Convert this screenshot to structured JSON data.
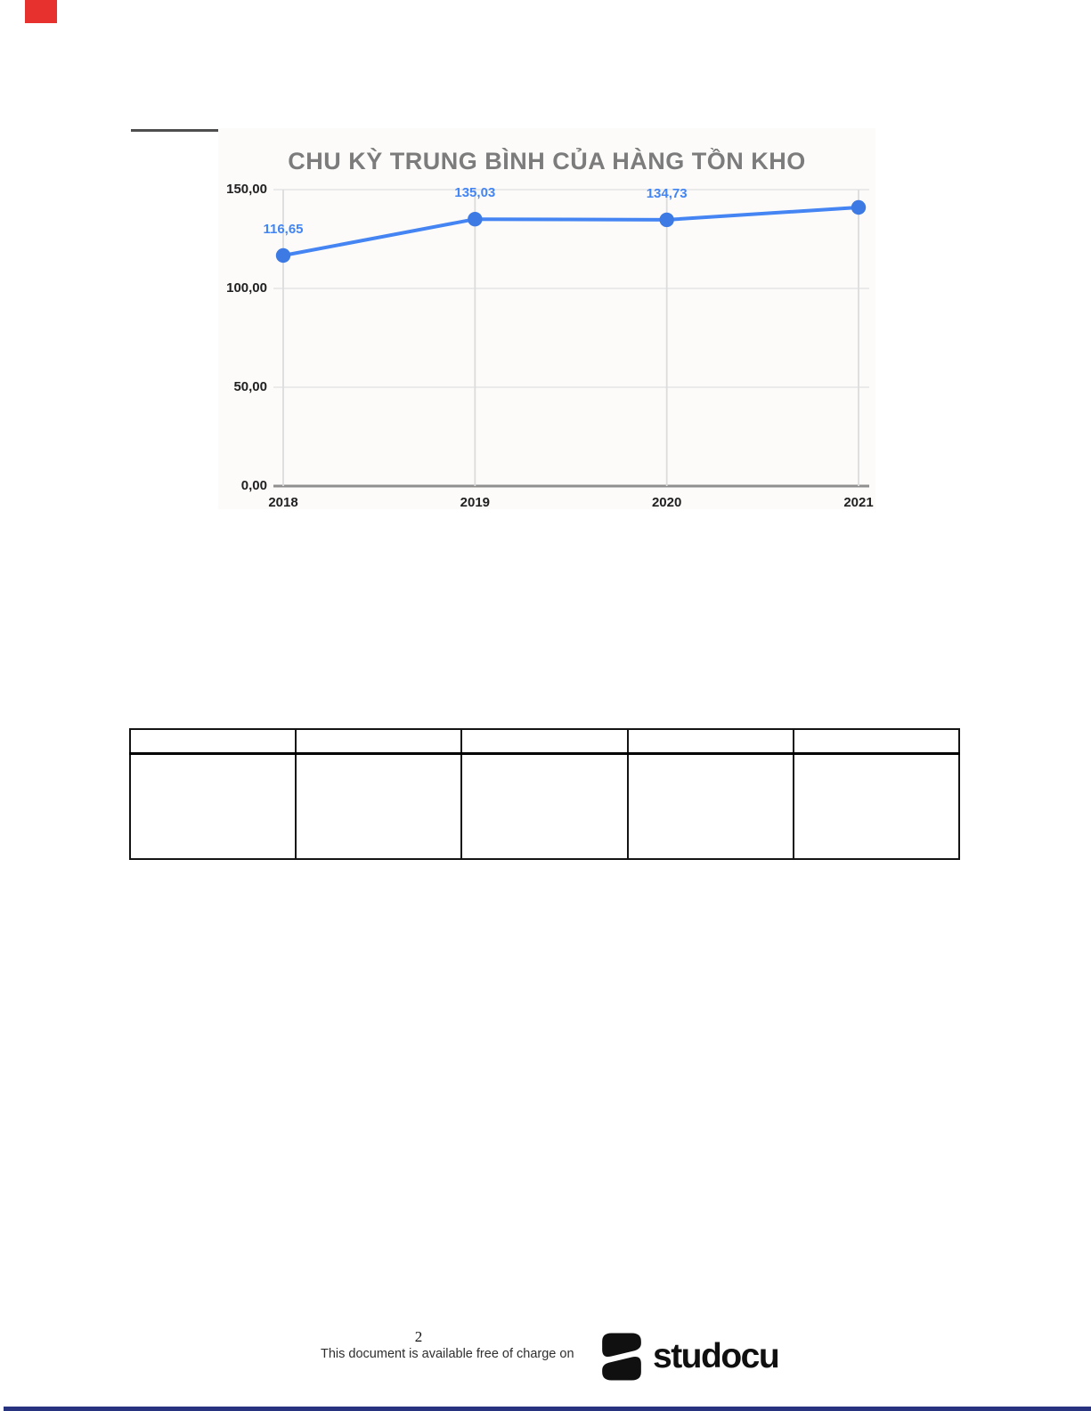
{
  "chart_data": {
    "type": "line",
    "title": "CHU KỲ TRUNG BÌNH CỦA HÀNG TỒN KHO",
    "categories": [
      "2018",
      "2019",
      "2020",
      "2021"
    ],
    "values": [
      116.65,
      135.03,
      134.73,
      141.0
    ],
    "point_labels": [
      "116,65",
      "135,03",
      "134,73",
      ""
    ],
    "y_ticks": [
      "150,00",
      "100,00",
      "50,00",
      "0,00"
    ],
    "ylim": [
      0,
      150
    ],
    "xlabel": "",
    "ylabel": "",
    "grid": true,
    "legend": false,
    "series_color": "#4484f3",
    "marker_color": "#3d7ae4",
    "gridline_color": "#e4e4e4",
    "axis_baseline_color": "#8f8f8f",
    "title_color": "#7c7c7c"
  },
  "table": {
    "rows": 2,
    "columns": 5,
    "cells_empty": true
  },
  "footer": {
    "page_number": "2",
    "notice": "This document is available free of charge on",
    "brand_name": "studocu"
  },
  "colors": {
    "red_marker": "#e6312e",
    "header_rule": "#4e4e4e",
    "bottom_rule": "#27337e"
  }
}
